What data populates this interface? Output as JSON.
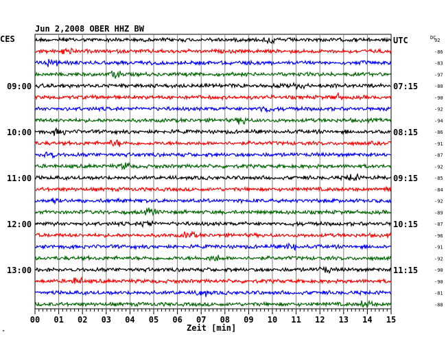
{
  "chart_data": {
    "type": "line",
    "title": "Jun 2,2008   OBER HHZ BW",
    "left_label": "CES",
    "right_label": "UTC",
    "dc_label": "DC",
    "xlabel": "Zeit [min]",
    "x_ticks": [
      "00",
      "01",
      "02",
      "03",
      "04",
      "05",
      "06",
      "07",
      "08",
      "09",
      "10",
      "11",
      "12",
      "13",
      "14",
      "15"
    ],
    "xlim": [
      0,
      15
    ],
    "grid": true,
    "colors": [
      "#000000",
      "#ff0000",
      "#0000ff",
      "#006400"
    ],
    "trace_minutes": 15,
    "left_hour_labels": [
      {
        "trace": 4,
        "label": "09:00"
      },
      {
        "trace": 8,
        "label": "10:00"
      },
      {
        "trace": 12,
        "label": "11:00"
      },
      {
        "trace": 16,
        "label": "12:00"
      },
      {
        "trace": 20,
        "label": "13:00"
      }
    ],
    "right_hour_labels": [
      {
        "trace": 0,
        "label": "UTC"
      },
      {
        "trace": 4,
        "label": "07:15"
      },
      {
        "trace": 8,
        "label": "08:15"
      },
      {
        "trace": 12,
        "label": "09:15"
      },
      {
        "trace": 16,
        "label": "10:15"
      },
      {
        "trace": 20,
        "label": "11:15"
      }
    ],
    "dc_values": [
      "92",
      "-86",
      "-83",
      "-97",
      "-80",
      "-90",
      "-92",
      "-94",
      "-86",
      "-91",
      "-87",
      "-92",
      "-85",
      "-84",
      "-92",
      "-89",
      "-87",
      "-96",
      "-91",
      "-92",
      "-90",
      "-90",
      "-81",
      "-88"
    ]
  },
  "footer_mark": "ꟸ"
}
